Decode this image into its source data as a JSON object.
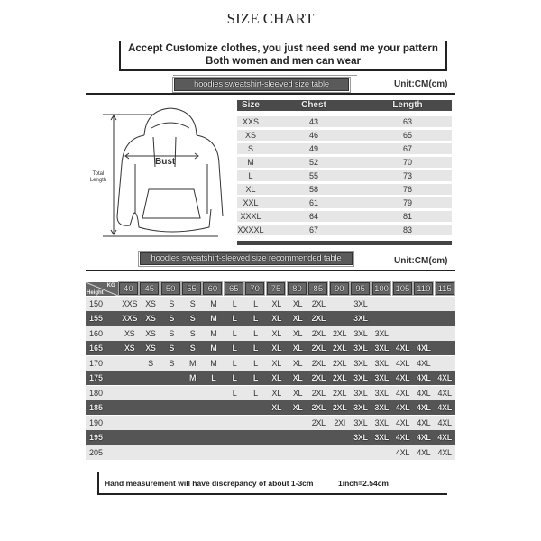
{
  "title": "SIZE CHART",
  "notice": {
    "line1": "Accept Customize clothes, you just need send me your pattern",
    "line2": "Both women and men can wear"
  },
  "size_table": {
    "banner": "hoodies sweatshirt-sleeved size table",
    "unit": "Unit:CM(cm)",
    "diagram_labels": {
      "bust": "Bust",
      "total_length": "Total Length"
    },
    "headers": [
      "Size",
      "Chest",
      "Length"
    ],
    "rows": [
      [
        "XXS",
        "43",
        "63"
      ],
      [
        "XS",
        "46",
        "65"
      ],
      [
        "S",
        "49",
        "67"
      ],
      [
        "M",
        "52",
        "70"
      ],
      [
        "L",
        "55",
        "73"
      ],
      [
        "XL",
        "58",
        "76"
      ],
      [
        "XXL",
        "61",
        "79"
      ],
      [
        "XXXL",
        "64",
        "81"
      ],
      [
        "XXXXL",
        "67",
        "83"
      ]
    ]
  },
  "recommend_table": {
    "banner": "hoodies sweatshirt-sleeved size recommended table",
    "unit": "Unit:CM(cm)",
    "corner": {
      "kg": "KG",
      "height": "Height"
    },
    "weights": [
      "40",
      "45",
      "50",
      "55",
      "60",
      "65",
      "70",
      "75",
      "80",
      "85",
      "90",
      "95",
      "100",
      "105",
      "110",
      "115"
    ],
    "rows": [
      {
        "height": "150",
        "dark": false,
        "sizes": [
          "XXS",
          "XS",
          "S",
          "S",
          "M",
          "L",
          "L",
          "XL",
          "XL",
          "2XL",
          "",
          "3XL",
          "",
          "",
          "",
          ""
        ]
      },
      {
        "height": "155",
        "dark": true,
        "sizes": [
          "XXS",
          "XS",
          "S",
          "S",
          "M",
          "L",
          "L",
          "XL",
          "XL",
          "2XL",
          "",
          "3XL",
          "",
          "",
          "",
          ""
        ]
      },
      {
        "height": "160",
        "dark": false,
        "sizes": [
          "XS",
          "XS",
          "S",
          "S",
          "M",
          "L",
          "L",
          "XL",
          "XL",
          "2XL",
          "2XL",
          "3XL",
          "3XL",
          "",
          "",
          ""
        ]
      },
      {
        "height": "165",
        "dark": true,
        "sizes": [
          "XS",
          "XS",
          "S",
          "S",
          "M",
          "L",
          "L",
          "XL",
          "XL",
          "2XL",
          "2XL",
          "3XL",
          "3XL",
          "4XL",
          "4XL",
          ""
        ]
      },
      {
        "height": "170",
        "dark": false,
        "sizes": [
          "",
          "S",
          "S",
          "M",
          "M",
          "L",
          "L",
          "XL",
          "XL",
          "2XL",
          "2XL",
          "3XL",
          "3XL",
          "4XL",
          "4XL",
          ""
        ]
      },
      {
        "height": "175",
        "dark": true,
        "sizes": [
          "",
          "",
          "",
          "M",
          "L",
          "L",
          "L",
          "XL",
          "XL",
          "2XL",
          "2XL",
          "3XL",
          "3XL",
          "4XL",
          "4XL",
          "4XL"
        ]
      },
      {
        "height": "180",
        "dark": false,
        "sizes": [
          "",
          "",
          "",
          "",
          "",
          "L",
          "L",
          "XL",
          "XL",
          "2XL",
          "2XL",
          "3XL",
          "3XL",
          "4XL",
          "4XL",
          "4XL"
        ]
      },
      {
        "height": "185",
        "dark": true,
        "sizes": [
          "",
          "",
          "",
          "",
          "",
          "",
          "",
          "XL",
          "XL",
          "2XL",
          "2XL",
          "3XL",
          "3XL",
          "4XL",
          "4XL",
          "4XL"
        ]
      },
      {
        "height": "190",
        "dark": false,
        "sizes": [
          "",
          "",
          "",
          "",
          "",
          "",
          "",
          "",
          "",
          "2XL",
          "2XI",
          "3XL",
          "3XL",
          "4XL",
          "4XL",
          "4XL"
        ]
      },
      {
        "height": "195",
        "dark": true,
        "sizes": [
          "",
          "",
          "",
          "",
          "",
          "",
          "",
          "",
          "",
          "",
          "",
          "3XL",
          "3XL",
          "4XL",
          "4XL",
          "4XL"
        ]
      },
      {
        "height": "205",
        "dark": false,
        "sizes": [
          "",
          "",
          "",
          "",
          "",
          "",
          "",
          "",
          "",
          "",
          "",
          "",
          "",
          "4XL",
          "4XL",
          "4XL"
        ]
      }
    ]
  },
  "footer": {
    "discrepancy": "Hand measurement will have discrepancy of about  1-3cm",
    "conversion": "1inch=2.54cm"
  }
}
